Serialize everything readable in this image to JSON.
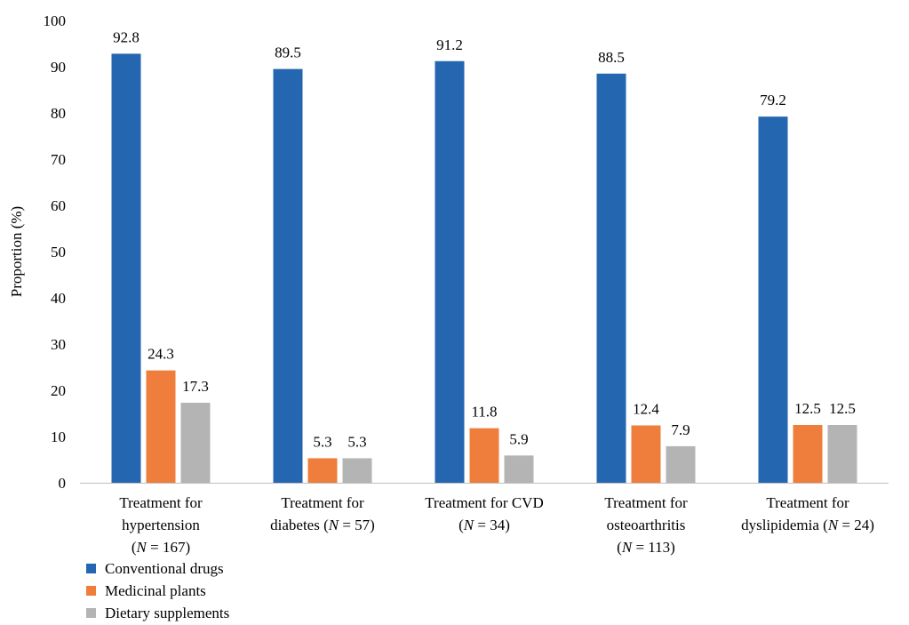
{
  "chart_data": {
    "type": "bar",
    "ylabel": "Proportion (%)",
    "xlabel": "",
    "ylim": [
      0,
      100
    ],
    "yticks": [
      0,
      10,
      20,
      30,
      40,
      50,
      60,
      70,
      80,
      90,
      100
    ],
    "grid": false,
    "legend_position": "bottom-left",
    "categories": [
      "Treatment for hypertension (N = 167)",
      "Treatment for diabetes (N = 57)",
      "Treatment for CVD (N = 34)",
      "Treatment for osteoarthritis (N = 113)",
      "Treatment for dyslipidemia (N = 24)"
    ],
    "category_lines": [
      [
        [
          {
            "t": "Treatment for"
          }
        ],
        [
          {
            "t": "hypertension"
          }
        ],
        [
          {
            "t": "("
          },
          {
            "t": "N",
            "i": true
          },
          {
            "t": " = 167)"
          }
        ]
      ],
      [
        [
          {
            "t": "Treatment for"
          }
        ],
        [
          {
            "t": "diabetes ("
          },
          {
            "t": "N",
            "i": true
          },
          {
            "t": " = 57)"
          }
        ]
      ],
      [
        [
          {
            "t": "Treatment for CVD"
          }
        ],
        [
          {
            "t": "("
          },
          {
            "t": "N",
            "i": true
          },
          {
            "t": " = 34)"
          }
        ]
      ],
      [
        [
          {
            "t": "Treatment for"
          }
        ],
        [
          {
            "t": "osteoarthritis"
          }
        ],
        [
          {
            "t": "("
          },
          {
            "t": "N",
            "i": true
          },
          {
            "t": " = 113)"
          }
        ]
      ],
      [
        [
          {
            "t": "Treatment for"
          }
        ],
        [
          {
            "t": "dyslipidemia ("
          },
          {
            "t": "N",
            "i": true
          },
          {
            "t": " = 24)"
          }
        ]
      ]
    ],
    "series": [
      {
        "name": "Conventional drugs",
        "color": "#2566b0",
        "values": [
          92.8,
          89.5,
          91.2,
          88.5,
          79.2
        ]
      },
      {
        "name": "Medicinal plants",
        "color": "#ef7d3b",
        "values": [
          24.3,
          5.3,
          11.8,
          12.4,
          12.5
        ]
      },
      {
        "name": "Dietary supplements",
        "color": "#b4b4b4",
        "values": [
          17.3,
          5.3,
          5.9,
          7.9,
          12.5
        ]
      }
    ]
  }
}
